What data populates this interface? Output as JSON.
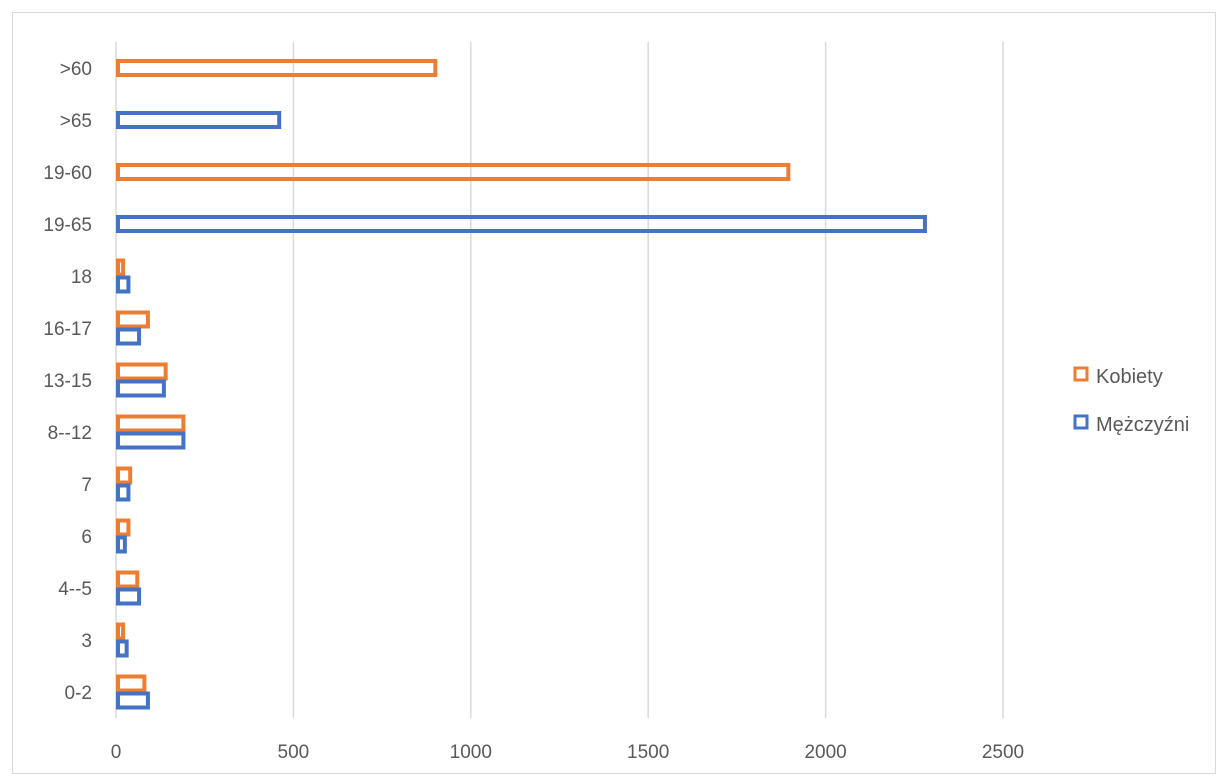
{
  "chart_data": {
    "type": "bar",
    "orientation": "horizontal",
    "categories": [
      "0-2",
      "3",
      "4--5",
      "6",
      "7",
      "8--12",
      "13-15",
      "16-17",
      "18",
      "19-65",
      "19-60",
      ">65",
      ">60"
    ],
    "series": [
      {
        "name": "Kobiety",
        "color": "#ED7D31",
        "values": [
          80,
          20,
          60,
          35,
          40,
          190,
          140,
          90,
          20,
          null,
          1895,
          null,
          900
        ]
      },
      {
        "name": "Mężczyźni",
        "color": "#4472C4",
        "values": [
          90,
          30,
          65,
          25,
          35,
          190,
          135,
          65,
          35,
          2280,
          null,
          460,
          null
        ]
      }
    ],
    "xlim": [
      0,
      2500
    ],
    "xticks": [
      0,
      500,
      1000,
      1500,
      2000,
      2500
    ],
    "gridlines": "vertical",
    "legend_position": "right",
    "bar_style": "outline"
  }
}
